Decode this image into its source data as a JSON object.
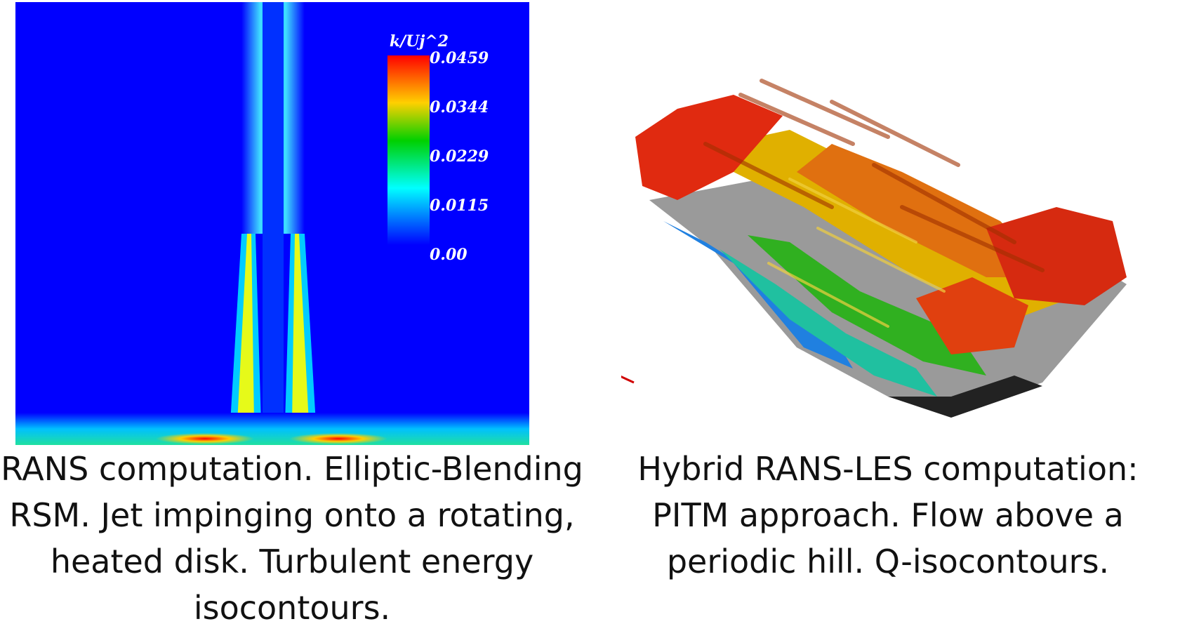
{
  "left_figure": {
    "colorbar": {
      "title": "k/Uj^2",
      "ticks": [
        "0.0459",
        "0.0344",
        "0.0229",
        "0.0115",
        "0.00"
      ],
      "colors": [
        "#ff0000",
        "#ffff00",
        "#00d000",
        "#00ffff",
        "#0000ff"
      ]
    },
    "background_color": "#0000ff"
  },
  "right_figure": {
    "axes_triad_colors": [
      "#e0c000",
      "#00a000",
      "#d00000"
    ]
  },
  "captions": {
    "left": "RANS computation. Elliptic-Blending RSM. Jet impinging onto a rotating, heated disk. Turbulent energy isocontours.",
    "right": "Hybrid RANS-LES computation: PITM approach. Flow above a periodic hill. Q-isocontours."
  }
}
